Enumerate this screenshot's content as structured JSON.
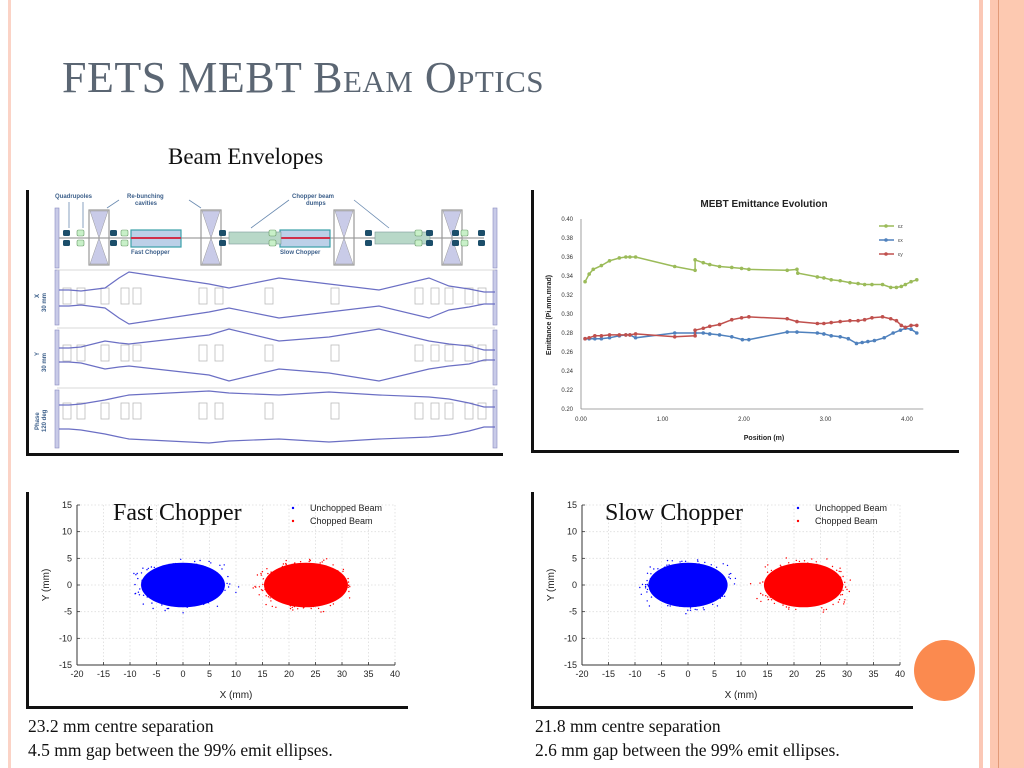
{
  "slide": {
    "title": "FETS MEBT Beam Optics",
    "subtitle": "Beam Envelopes",
    "accent_color": "#fb8a4f",
    "title_color": "#5b6673"
  },
  "envelope_diagram": {
    "labels": {
      "quadrupoles": "Quadrupoles",
      "rebunching_line1": "Re-bunching",
      "rebunching_line2": "cavities",
      "dumps_line1": "Chopper beam",
      "dumps_line2": "dumps",
      "fast_chopper": "Fast Chopper",
      "slow_chopper": "Slow Chopper",
      "x_axis": "X",
      "x_scale": "30 mm",
      "y_axis": "Y",
      "y_scale": "30 mm",
      "phase_axis": "Phase",
      "phase_scale": "120 deg"
    },
    "envelope_color": "#6b6fc4"
  },
  "chart_data": [
    {
      "type": "line",
      "title": "MEBT Emittance Evolution",
      "xlabel": "Position (m)",
      "ylabel": "Emittance (Pi.mm.mrad)",
      "xlim": [
        0,
        4.2
      ],
      "ylim": [
        0.2,
        0.4
      ],
      "xticks": [
        "0.00",
        "1.00",
        "2.00",
        "3.00",
        "4.00"
      ],
      "yticks": [
        "0.20",
        "0.22",
        "0.24",
        "0.26",
        "0.28",
        "0.30",
        "0.32",
        "0.34",
        "0.36",
        "0.38",
        "0.40"
      ],
      "grid": false,
      "legend": "top-right",
      "series": [
        {
          "name": "εz",
          "color": "#9bbb59",
          "x": [
            0.05,
            0.1,
            0.15,
            0.25,
            0.35,
            0.47,
            0.55,
            0.6,
            0.67,
            1.15,
            1.4,
            1.4,
            1.5,
            1.58,
            1.7,
            1.85,
            1.97,
            2.06,
            2.53,
            2.65,
            2.66,
            2.9,
            2.98,
            3.07,
            3.18,
            3.3,
            3.4,
            3.48,
            3.57,
            3.7,
            3.8,
            3.87,
            3.93,
            3.98,
            4.05,
            4.12
          ],
          "y": [
            0.334,
            0.342,
            0.347,
            0.351,
            0.356,
            0.359,
            0.36,
            0.36,
            0.36,
            0.35,
            0.346,
            0.357,
            0.354,
            0.352,
            0.35,
            0.349,
            0.348,
            0.347,
            0.346,
            0.347,
            0.343,
            0.339,
            0.338,
            0.336,
            0.335,
            0.333,
            0.332,
            0.331,
            0.331,
            0.331,
            0.328,
            0.328,
            0.329,
            0.331,
            0.334,
            0.336
          ]
        },
        {
          "name": "εx",
          "color": "#4f81bd",
          "x": [
            0.05,
            0.1,
            0.17,
            0.25,
            0.35,
            0.47,
            0.55,
            0.6,
            0.67,
            1.15,
            1.4,
            1.5,
            1.58,
            1.7,
            1.85,
            1.98,
            2.06,
            2.53,
            2.65,
            2.9,
            2.98,
            3.07,
            3.18,
            3.28,
            3.38,
            3.45,
            3.52,
            3.6,
            3.72,
            3.83,
            3.92,
            3.98,
            4.05,
            4.12
          ],
          "y": [
            0.274,
            0.274,
            0.274,
            0.274,
            0.275,
            0.277,
            0.278,
            0.278,
            0.275,
            0.28,
            0.28,
            0.28,
            0.279,
            0.278,
            0.276,
            0.273,
            0.273,
            0.281,
            0.281,
            0.28,
            0.279,
            0.277,
            0.276,
            0.274,
            0.269,
            0.27,
            0.271,
            0.272,
            0.275,
            0.28,
            0.283,
            0.285,
            0.284,
            0.28
          ]
        },
        {
          "name": "εy",
          "color": "#c0504d",
          "x": [
            0.05,
            0.1,
            0.17,
            0.25,
            0.35,
            0.47,
            0.55,
            0.6,
            0.67,
            1.15,
            1.4,
            1.4,
            1.5,
            1.58,
            1.7,
            1.85,
            1.97,
            2.06,
            2.53,
            2.65,
            2.9,
            2.98,
            3.07,
            3.18,
            3.3,
            3.4,
            3.48,
            3.57,
            3.7,
            3.8,
            3.87,
            3.93,
            3.98,
            4.05,
            4.12
          ],
          "y": [
            0.274,
            0.275,
            0.277,
            0.277,
            0.278,
            0.278,
            0.278,
            0.278,
            0.279,
            0.276,
            0.277,
            0.283,
            0.285,
            0.287,
            0.289,
            0.294,
            0.296,
            0.297,
            0.295,
            0.292,
            0.29,
            0.29,
            0.291,
            0.292,
            0.293,
            0.293,
            0.294,
            0.296,
            0.297,
            0.295,
            0.293,
            0.288,
            0.286,
            0.288,
            0.288
          ]
        }
      ]
    },
    {
      "type": "scatter",
      "title": "Fast Chopper",
      "xlabel": "X (mm)",
      "ylabel": "Y (mm)",
      "xlim": [
        -20,
        40
      ],
      "ylim": [
        -15,
        15
      ],
      "xticks": [
        "-20",
        "-15",
        "-10",
        "-5",
        "0",
        "5",
        "10",
        "15",
        "20",
        "25",
        "30",
        "35",
        "40"
      ],
      "yticks": [
        "-15",
        "-10",
        "-5",
        "0",
        "5",
        "10",
        "15"
      ],
      "grid": true,
      "legend": "top-right",
      "series": [
        {
          "name": "Unchopped Beam",
          "color": "#0000ff",
          "center": [
            0,
            0
          ],
          "sigma": [
            3.6,
            1.9
          ]
        },
        {
          "name": "Chopped Beam",
          "color": "#ff0000",
          "center": [
            23.2,
            0
          ],
          "sigma": [
            3.6,
            1.9
          ]
        }
      ]
    },
    {
      "type": "scatter",
      "title": "Slow Chopper",
      "xlabel": "X (mm)",
      "ylabel": "Y (mm)",
      "xlim": [
        -20,
        40
      ],
      "ylim": [
        -15,
        15
      ],
      "xticks": [
        "-20",
        "-15",
        "-10",
        "-5",
        "0",
        "5",
        "10",
        "15",
        "20",
        "25",
        "30",
        "35",
        "40"
      ],
      "yticks": [
        "-15",
        "-10",
        "-5",
        "0",
        "5",
        "10",
        "15"
      ],
      "grid": true,
      "legend": "top-right",
      "series": [
        {
          "name": "Unchopped Beam",
          "color": "#0000ff",
          "center": [
            0,
            0
          ],
          "sigma": [
            3.4,
            1.9
          ]
        },
        {
          "name": "Chopped Beam",
          "color": "#ff0000",
          "center": [
            21.8,
            0
          ],
          "sigma": [
            3.4,
            1.9
          ]
        }
      ]
    }
  ],
  "captions": {
    "fast": [
      "23.2 mm centre separation",
      "4.5 mm gap between the 99% emit ellipses."
    ],
    "slow": [
      "21.8 mm centre separation",
      "2.6 mm gap between the 99% emit ellipses."
    ]
  }
}
